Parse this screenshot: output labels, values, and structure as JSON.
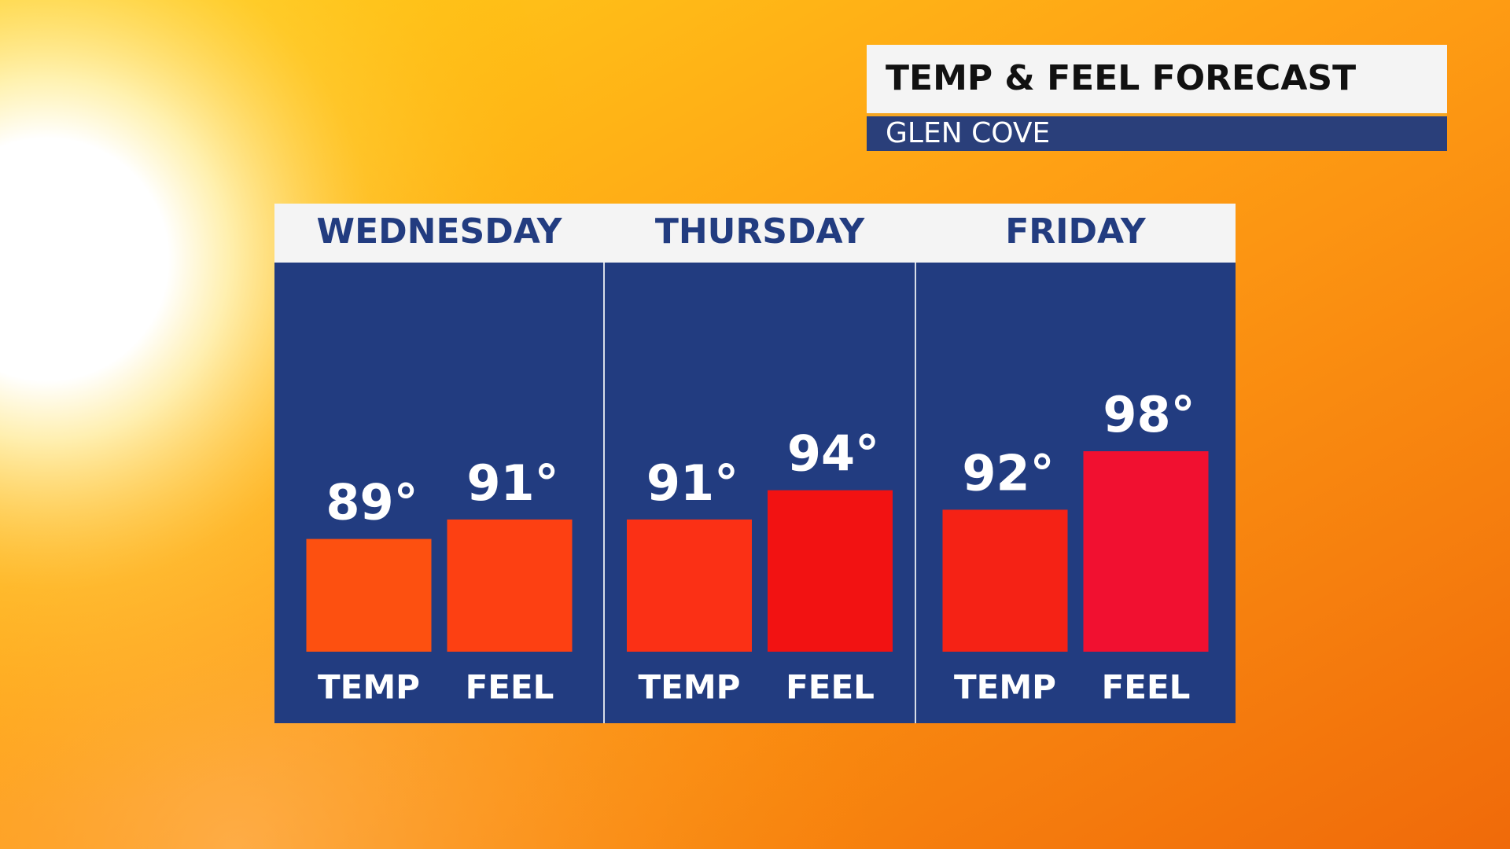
{
  "chart_data": {
    "type": "grouped_bar",
    "title": "TEMP & FEEL FORECAST",
    "subtitle": "GLEN COVE",
    "categories": [
      "WEDNESDAY",
      "THURSDAY",
      "FRIDAY"
    ],
    "series": [
      {
        "name": "TEMP",
        "values": [
          89,
          91,
          92
        ],
        "value_labels": [
          "89°",
          "91°",
          "92°"
        ],
        "colors": [
          "#fd5010",
          "#fb3015",
          "#f52215"
        ]
      },
      {
        "name": "FEEL",
        "values": [
          91,
          94,
          98
        ],
        "value_labels": [
          "91°",
          "94°",
          "98°"
        ],
        "colors": [
          "#fd4012",
          "#f21212",
          "#f11030"
        ]
      }
    ]
  }
}
